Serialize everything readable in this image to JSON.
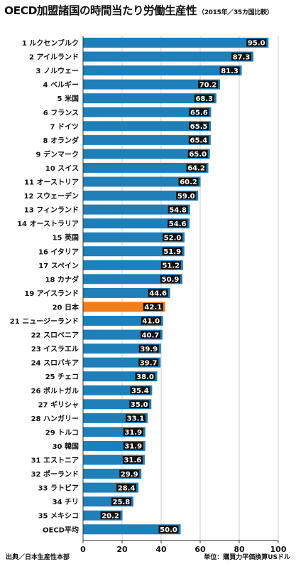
{
  "header": {
    "title": "OECD加盟諸国の時間当たり労働生産性",
    "subtitle": "（2015年／35カ国比較）"
  },
  "footer": {
    "source": "出典／日本生産性本部",
    "unit": "単位：購買力平価換算USドル"
  },
  "colors": {
    "bar": "#1f7fb8",
    "highlight": "#ef7d1a",
    "label_bg": "#111111",
    "label_text": "#ffffff",
    "grid": "#cfcfcf",
    "axis": "#333333"
  },
  "chart_data": {
    "type": "bar",
    "orientation": "horizontal",
    "categories": [
      "1 ルクセンブルク",
      "2 アイルランド",
      "3 ノルウェー",
      "4 ベルギー",
      "5 米国",
      "6 フランス",
      "7 ドイツ",
      "8 オランダ",
      "9 デンマーク",
      "10 スイス",
      "11 オーストリア",
      "12 スウェーデン",
      "13 フィンランド",
      "14 オーストラリア",
      "15 英国",
      "16 イタリア",
      "17 スペイン",
      "18 カナダ",
      "19 アイスランド",
      "20 日本",
      "21 ニュージーランド",
      "22 スロベニア",
      "23 イスラエル",
      "24 スロバキア",
      "25 チェコ",
      "26 ポルトガル",
      "27 ギリシャ",
      "28 ハンガリー",
      "29 トルコ",
      "30 韓国",
      "31 エストニア",
      "32 ポーランド",
      "33 ラトビア",
      "34 チリ",
      "35 メキシコ",
      "OECD平均"
    ],
    "values": [
      95.0,
      87.3,
      81.3,
      70.2,
      68.3,
      65.6,
      65.5,
      65.4,
      65.0,
      64.2,
      60.2,
      59.0,
      54.8,
      54.6,
      52.0,
      51.9,
      51.2,
      50.9,
      44.6,
      42.1,
      41.0,
      40.7,
      39.9,
      39.7,
      38.0,
      35.4,
      35.0,
      33.1,
      31.9,
      31.9,
      31.6,
      29.9,
      28.4,
      25.8,
      20.2,
      50.0
    ],
    "value_labels": [
      "95.0",
      "87.3",
      "81.3",
      "70.2",
      "68.3",
      "65.6",
      "65.5",
      "65.4",
      "65.0",
      "64.2",
      "60.2",
      "59.0",
      "54.8",
      "54.6",
      "52.0",
      "51.9",
      "51.2",
      "50.9",
      "44.6",
      "42.1",
      "41.0",
      "40.7",
      "39.9",
      "39.7",
      "38.0",
      "35.4",
      "35.0",
      "33.1",
      "31.9",
      "31.9",
      "31.6",
      "29.9",
      "28.4",
      "25.8",
      "20.2",
      "50.0"
    ],
    "highlight": "20 日本",
    "xlim": [
      0,
      100
    ],
    "xticks": [
      0,
      20,
      40,
      60,
      80,
      100
    ],
    "grid": true
  }
}
